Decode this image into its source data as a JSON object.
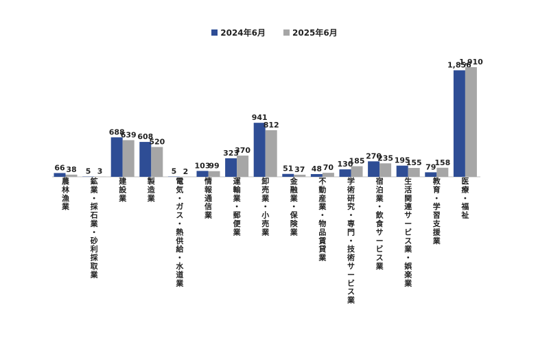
{
  "chart_data": {
    "type": "bar",
    "title": "",
    "xlabel": "",
    "ylabel": "",
    "ylim": [
      0,
      1910
    ],
    "grid": false,
    "legend_position": "top-center",
    "categories": [
      "農林漁業",
      "鉱業・採石業・砂利採取業",
      "建設業",
      "製造業",
      "電気・ガス・熱供給・水道業",
      "情報通信業",
      "運輸業・郵便業",
      "卸売業・小売業",
      "金融業・保険業",
      "不動産業・物品賃貸業",
      "学術研究・専門・技術サービス業",
      "宿泊業・飲食サービス業",
      "生活関連サービス業・娯楽業",
      "教育・学習支援業",
      "医療・福祉"
    ],
    "series": [
      {
        "name": "2024年6月",
        "color": "#2e4d95",
        "values": [
          66,
          5,
          688,
          608,
          5,
          103,
          323,
          941,
          51,
          48,
          130,
          270,
          195,
          79,
          1856
        ],
        "labels": [
          "66",
          "5",
          "688",
          "608",
          "5",
          "103",
          "323",
          "941",
          "51",
          "48",
          "130",
          "270",
          "195",
          "79",
          "1,856"
        ]
      },
      {
        "name": "2025年6月",
        "color": "#a6a6a6",
        "values": [
          38,
          3,
          639,
          520,
          2,
          99,
          370,
          812,
          37,
          70,
          185,
          235,
          155,
          158,
          1910
        ],
        "labels": [
          "38",
          "3",
          "639",
          "520",
          "2",
          "99",
          "370",
          "812",
          "37",
          "70",
          "185",
          "235",
          "155",
          "158",
          "1,910"
        ]
      }
    ]
  }
}
